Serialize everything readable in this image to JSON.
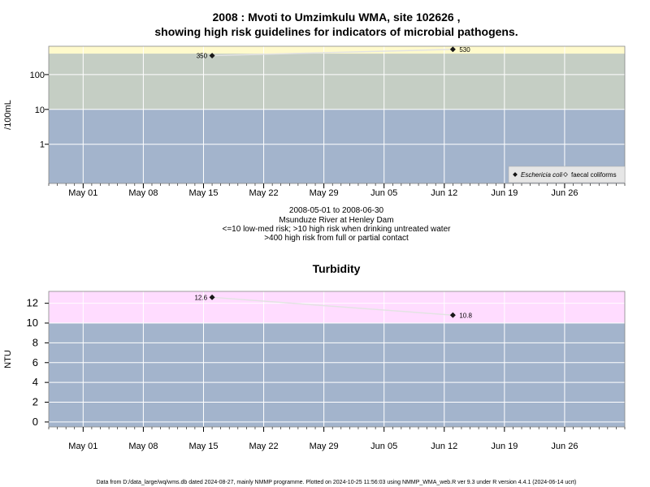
{
  "figure": {
    "title_line1": "2008 : Mvoti to Umzimkulu WMA, site 102626 ,",
    "title_line2": "showing high risk guidelines for indicators of microbial pathogens.",
    "caption": [
      "2008-05-01 to 2008-06-30",
      "Msunduze River at Henley Dam",
      "<=10 low-med risk; >10 high risk when drinking untreated water",
      ">400 high risk from full or partial contact"
    ],
    "footer": "Data from D:/data_large/wq/wms.db dated 2024-08-27, mainly NMMP programme. Plotted on 2024-10-25 11:56:03 using NMMP_WMA_web.R ver 9.3 under R version 4.4.1 (2024-06-14 ucrt)",
    "colors": {
      "band_blue": "#a3b4cc",
      "band_grey": "#c5cec4",
      "band_yellow": "#fffacc",
      "band_pink": "#ffdcff",
      "line": "#e3e3e3",
      "marker": "#1a1a1a"
    }
  },
  "chart_data": [
    {
      "type": "line",
      "title": "",
      "ylabel": "/100mL",
      "yscale": "log",
      "x_range": [
        "2008-04-27",
        "2008-07-03"
      ],
      "x_ticks": [
        "2008-05-01",
        "2008-05-08",
        "2008-05-15",
        "2008-05-22",
        "2008-05-29",
        "2008-06-05",
        "2008-06-12",
        "2008-06-19",
        "2008-06-26"
      ],
      "x_tick_labels": [
        "May 01",
        "May 08",
        "May 15",
        "May 22",
        "May 29",
        "Jun 05",
        "Jun 12",
        "Jun 19",
        "Jun 26"
      ],
      "ylim": [
        0.075,
        650
      ],
      "y_ticks": [
        1,
        10,
        100
      ],
      "y_tick_labels": [
        "1",
        "10",
        "100"
      ],
      "bands": [
        {
          "from": 0.075,
          "to": 10,
          "color": "#a3b4cc"
        },
        {
          "from": 10,
          "to": 400,
          "color": "#c5cec4"
        },
        {
          "from": 400,
          "to": 650,
          "color": "#fffacc"
        }
      ],
      "grid": true,
      "series": [
        {
          "name": "Eschericia coli",
          "marker": "filled-diamond",
          "x": [
            "2008-05-16",
            "2008-06-13"
          ],
          "y": [
            350,
            530
          ],
          "labels": [
            "350",
            "530"
          ]
        },
        {
          "name": "faecal coliforms",
          "marker": "open-diamond",
          "x": [],
          "y": [],
          "labels": []
        }
      ],
      "legend_position": "bottom-right"
    },
    {
      "type": "line",
      "title": "Turbidity",
      "ylabel": "NTU",
      "yscale": "linear",
      "x_range": [
        "2008-04-27",
        "2008-07-03"
      ],
      "x_ticks": [
        "2008-05-01",
        "2008-05-08",
        "2008-05-15",
        "2008-05-22",
        "2008-05-29",
        "2008-06-05",
        "2008-06-12",
        "2008-06-19",
        "2008-06-26"
      ],
      "x_tick_labels": [
        "May 01",
        "May 08",
        "May 15",
        "May 22",
        "May 29",
        "Jun 05",
        "Jun 12",
        "Jun 19",
        "Jun 26"
      ],
      "ylim": [
        -0.5,
        13.2
      ],
      "y_ticks": [
        0,
        2,
        4,
        6,
        8,
        10,
        12
      ],
      "y_tick_labels": [
        "0",
        "2",
        "4",
        "6",
        "8",
        "10",
        "12"
      ],
      "bands": [
        {
          "from": -0.5,
          "to": 10,
          "color": "#a3b4cc"
        },
        {
          "from": 10,
          "to": 13.2,
          "color": "#ffdcff"
        }
      ],
      "grid": true,
      "series": [
        {
          "name": "",
          "marker": "filled-diamond",
          "x": [
            "2008-05-16",
            "2008-06-13"
          ],
          "y": [
            12.6,
            10.8
          ],
          "labels": [
            "12.6",
            "10.8"
          ]
        }
      ]
    }
  ]
}
